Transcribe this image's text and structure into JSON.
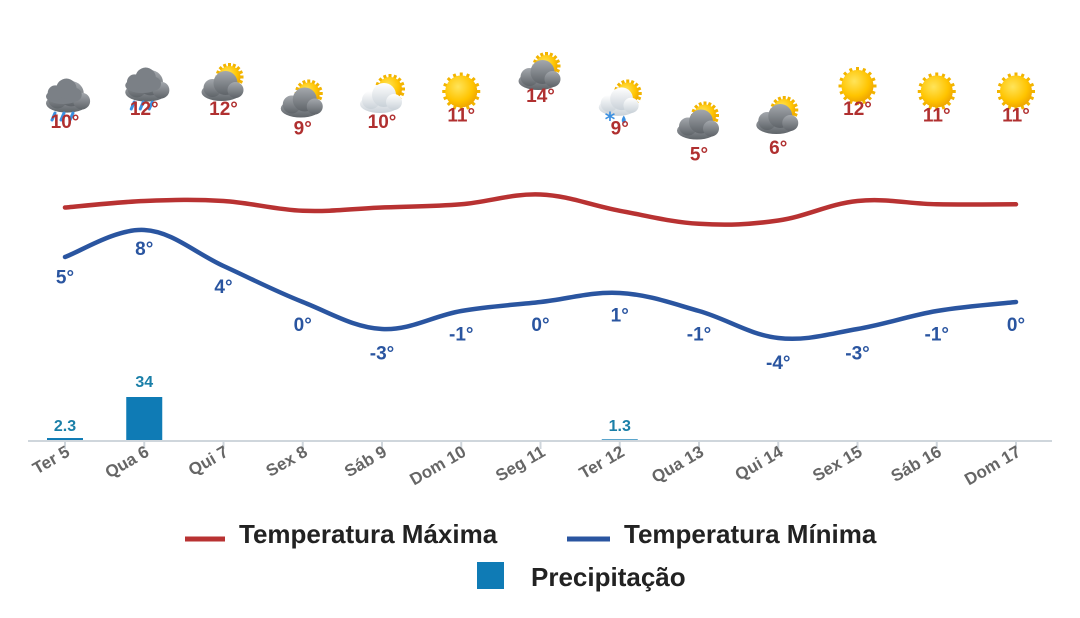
{
  "chart_data": {
    "type": "line",
    "categories": [
      "Ter 5",
      "Qua 6",
      "Qui 7",
      "Sex 8",
      "Sáb 9",
      "Dom 10",
      "Seg 11",
      "Ter 12",
      "Qua 13",
      "Qui 14",
      "Sex 15",
      "Sáb 16",
      "Dom 17"
    ],
    "weather_icons": [
      "rain-cloud-icon",
      "rain-cloud-icon",
      "cloud-sun-icon",
      "cloud-sun-icon",
      "sun-behind-light-cloud-icon",
      "sun-icon",
      "cloud-sun-icon",
      "snow-rain-sun-icon",
      "cloud-sun-icon",
      "cloud-sun-icon",
      "sun-icon",
      "sun-icon",
      "sun-icon"
    ],
    "series": [
      {
        "name": "Temperatura Máxima",
        "color": "#b83232",
        "values": [
          10,
          12,
          12,
          9,
          10,
          11,
          14,
          9,
          5,
          6,
          12,
          11,
          11
        ]
      },
      {
        "name": "Temperatura Mínima",
        "color": "#2a55a0",
        "values": [
          5,
          8,
          4,
          0,
          -3,
          -1,
          0,
          1,
          -1,
          -4,
          -3,
          -1,
          0
        ]
      },
      {
        "name": "Precipitação",
        "type": "bar",
        "color": "#0f7bb5",
        "values": [
          2.3,
          34,
          0,
          0,
          0,
          0,
          0,
          1.3,
          0,
          0,
          0,
          0,
          0
        ]
      }
    ],
    "labels": {
      "tmax": [
        "10°",
        "12°",
        "12°",
        "9°",
        "10°",
        "11°",
        "14°",
        "9°",
        "5°",
        "6°",
        "12°",
        "11°",
        "11°"
      ],
      "tmin": [
        "5°",
        "8°",
        "4°",
        "0°",
        "-3°",
        "-1°",
        "0°",
        "1°",
        "-1°",
        "-4°",
        "-3°",
        "-1°",
        "0°"
      ],
      "precip": [
        "2.3",
        "34",
        "",
        "",
        "",
        "",
        "",
        "1.3",
        "",
        "",
        "",
        "",
        ""
      ]
    },
    "legend": {
      "position": "bottom",
      "items": [
        "Temperatura Máxima",
        "Temperatura Mínima",
        "Precipitação"
      ]
    },
    "title": "",
    "xlabel": "",
    "ylabel": "",
    "grid": false
  }
}
